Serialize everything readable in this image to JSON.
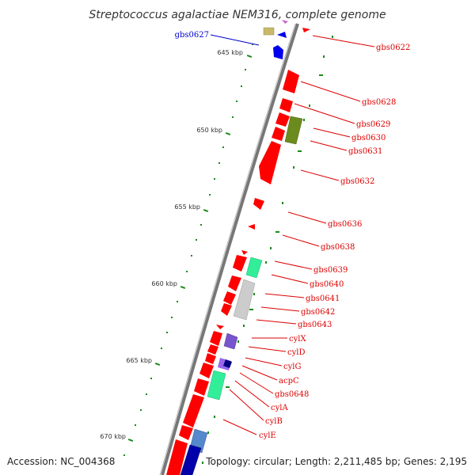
{
  "title": "Streptococcus agalactiae NEM316, complete genome",
  "accession_text": "Accession: NC_004368",
  "topology_text": "Topology: circular; Length: 2,211,485 bp; Genes: 2,195",
  "colors": {
    "forward_gene": "#ff0000",
    "backbone": "#888888",
    "tick": "#1a8a1a",
    "label_red": "#dd0000",
    "label_blue": "#0000cc"
  },
  "kbp_marks": [
    "645 kbp",
    "650 kbp",
    "655 kbp",
    "660 kbp",
    "665 kbp",
    "670 kbp"
  ],
  "gene_labels": [
    {
      "text": "gbs0622",
      "color": "#dd0000"
    },
    {
      "text": "gbs0627",
      "color": "#0000cc"
    },
    {
      "text": "gbs0628",
      "color": "#dd0000"
    },
    {
      "text": "gbs0629",
      "color": "#dd0000"
    },
    {
      "text": "gbs0630",
      "color": "#dd0000"
    },
    {
      "text": "gbs0631",
      "color": "#dd0000"
    },
    {
      "text": "gbs0632",
      "color": "#dd0000"
    },
    {
      "text": "gbs0636",
      "color": "#dd0000"
    },
    {
      "text": "gbs0638",
      "color": "#dd0000"
    },
    {
      "text": "gbs0639",
      "color": "#dd0000"
    },
    {
      "text": "gbs0640",
      "color": "#dd0000"
    },
    {
      "text": "gbs0641",
      "color": "#dd0000"
    },
    {
      "text": "gbs0642",
      "color": "#dd0000"
    },
    {
      "text": "gbs0643",
      "color": "#dd0000"
    },
    {
      "text": "cylX",
      "color": "#dd0000"
    },
    {
      "text": "cylD",
      "color": "#dd0000"
    },
    {
      "text": "cylG",
      "color": "#dd0000"
    },
    {
      "text": "acpC",
      "color": "#dd0000"
    },
    {
      "text": "gbs0648",
      "color": "#dd0000"
    },
    {
      "text": "cylA",
      "color": "#dd0000"
    },
    {
      "text": "cylB",
      "color": "#dd0000"
    },
    {
      "text": "cylE",
      "color": "#dd0000"
    }
  ]
}
